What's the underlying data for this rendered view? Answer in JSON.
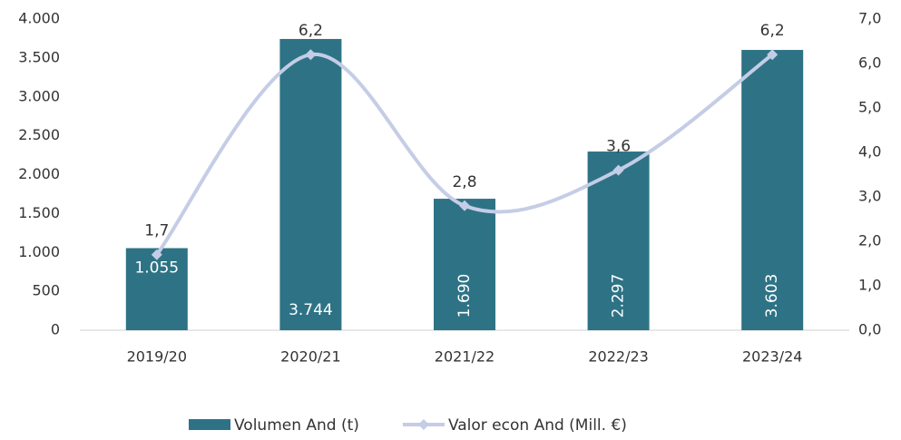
{
  "chart_data": {
    "type": "bar",
    "categories": [
      "2019/20",
      "2020/21",
      "2021/22",
      "2022/23",
      "2023/24"
    ],
    "series": [
      {
        "name": "Volumen And (t)",
        "type": "bar",
        "color": "#2e7385",
        "values": [
          1055,
          3744,
          1690,
          2297,
          3603
        ],
        "value_labels": [
          "1.055",
          "3.744",
          "1.690",
          "2.297",
          "3.603"
        ]
      },
      {
        "name": "Valor econ And (Mill. €)",
        "type": "line",
        "axis": "y2",
        "color": "#c5cde6",
        "values": [
          1.7,
          6.2,
          2.8,
          3.6,
          6.2
        ],
        "value_labels": [
          "1,7",
          "6,2",
          "2,8",
          "3,6",
          "6,2"
        ]
      }
    ],
    "ylim": [
      0,
      4000
    ],
    "yticks": [
      0,
      {
        "value": 500,
        "label": "500"
      },
      {
        "value": 1000,
        "label": "1.000"
      },
      {
        "value": 1500,
        "label": "1.500"
      },
      {
        "value": 2000,
        "label": "2.000"
      },
      {
        "value": 2500,
        "label": "2.500"
      },
      {
        "value": 3000,
        "label": "3.000"
      },
      {
        "value": 3500,
        "label": "3.500"
      },
      {
        "value": 4000,
        "label": "4.000"
      }
    ],
    "y2lim": [
      0,
      7
    ],
    "y2ticks": [
      {
        "value": 0,
        "label": "0,0"
      },
      {
        "value": 1,
        "label": "1,0"
      },
      {
        "value": 2,
        "label": "2,0"
      },
      {
        "value": 3,
        "label": "3,0"
      },
      {
        "value": 4,
        "label": "4,0"
      },
      {
        "value": 5,
        "label": "5,0"
      },
      {
        "value": 6,
        "label": "6,0"
      },
      {
        "value": 7,
        "label": "7,0"
      }
    ],
    "legend": "bottom",
    "grid": false
  }
}
